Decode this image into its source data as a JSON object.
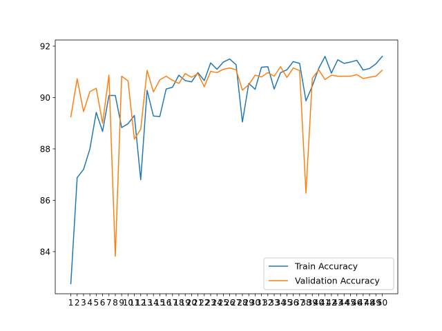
{
  "chart_data": {
    "type": "line",
    "title": "",
    "xlabel": "",
    "ylabel": "",
    "x": [
      1,
      2,
      3,
      4,
      5,
      6,
      7,
      8,
      9,
      10,
      11,
      12,
      13,
      14,
      15,
      16,
      17,
      18,
      19,
      20,
      21,
      22,
      23,
      24,
      25,
      26,
      27,
      28,
      29,
      30,
      31,
      32,
      33,
      34,
      35,
      36,
      37,
      38,
      39,
      40,
      41,
      42,
      43,
      44,
      45,
      46,
      47,
      48,
      49,
      50
    ],
    "xtick_labels": [
      "1",
      "2",
      "3",
      "4",
      "5",
      "6",
      "7",
      "8",
      "9",
      "10",
      "11",
      "12",
      "13",
      "14",
      "15",
      "16",
      "17",
      "18",
      "19",
      "20",
      "21",
      "22",
      "23",
      "24",
      "25",
      "26",
      "27",
      "28",
      "29",
      "30",
      "31",
      "32",
      "33",
      "34",
      "35",
      "36",
      "37",
      "38",
      "39",
      "40",
      "41",
      "42",
      "43",
      "44",
      "45",
      "46",
      "47",
      "48",
      "49",
      "50"
    ],
    "yticks": [
      84,
      86,
      88,
      90,
      92
    ],
    "xlim": [
      -1.45,
      52.45
    ],
    "ylim": [
      82.36,
      92.24
    ],
    "grid": false,
    "legend_position": "lower-right",
    "series": [
      {
        "name": "Train Accuracy",
        "color": "#1f77b4",
        "values": [
          82.75,
          86.88,
          87.2,
          88.0,
          89.42,
          88.68,
          90.08,
          90.08,
          88.83,
          88.98,
          89.3,
          86.8,
          90.28,
          89.28,
          89.26,
          90.33,
          90.4,
          90.87,
          90.66,
          90.61,
          90.97,
          90.66,
          91.35,
          91.1,
          91.38,
          91.5,
          91.28,
          89.05,
          90.55,
          90.32,
          91.18,
          91.2,
          90.33,
          90.97,
          91.08,
          91.4,
          91.33,
          89.87,
          90.45,
          91.13,
          91.6,
          90.95,
          91.47,
          91.33,
          91.38,
          91.45,
          91.07,
          91.13,
          91.31,
          91.6
        ]
      },
      {
        "name": "Validation Accuracy",
        "color": "#ff7f0e",
        "values": [
          89.25,
          90.73,
          89.45,
          90.23,
          90.36,
          89.0,
          90.87,
          83.82,
          90.83,
          90.65,
          88.38,
          88.77,
          91.06,
          90.22,
          90.69,
          90.83,
          90.67,
          90.55,
          90.93,
          90.79,
          90.93,
          90.42,
          91.02,
          90.97,
          91.1,
          91.15,
          91.08,
          90.29,
          90.5,
          90.87,
          90.8,
          90.97,
          90.83,
          91.2,
          90.78,
          91.15,
          91.05,
          86.28,
          90.75,
          91.08,
          90.7,
          90.87,
          90.83,
          90.83,
          90.83,
          90.89,
          90.74,
          90.79,
          90.83,
          91.06
        ]
      }
    ]
  }
}
